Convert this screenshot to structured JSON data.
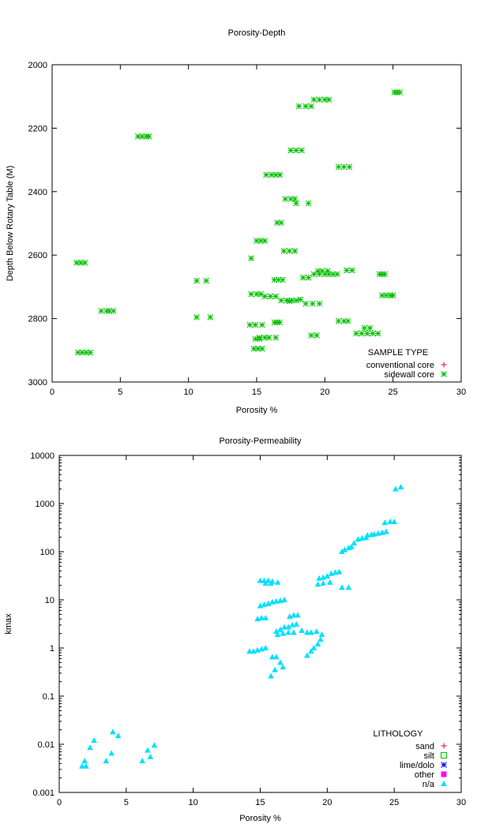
{
  "chart_data": [
    {
      "type": "scatter",
      "title": "Porosity-Depth",
      "xlabel": "Porosity %",
      "ylabel": "Depth Below Rotary Table (M)",
      "xlim": [
        0,
        30
      ],
      "ylim": [
        2000,
        3000
      ],
      "y_inverted": true,
      "grid": false,
      "legend_title": "SAMPLE TYPE",
      "legend_position": "bottom-right",
      "xticks": [
        0,
        5,
        10,
        15,
        20,
        25,
        30
      ],
      "yticks": [
        2000,
        2200,
        2400,
        2600,
        2800,
        3000
      ],
      "series": [
        {
          "name": "conventional core",
          "marker": "plus",
          "color": "#ff0000",
          "points": []
        },
        {
          "name": "sidewall core",
          "marker": "asterisk",
          "color": "#00c000",
          "points": [
            [
              25.1,
              2087
            ],
            [
              25.3,
              2087
            ],
            [
              25.5,
              2087
            ],
            [
              19.2,
              2110
            ],
            [
              19.6,
              2110
            ],
            [
              20.0,
              2110
            ],
            [
              20.3,
              2110
            ],
            [
              18.1,
              2131
            ],
            [
              18.6,
              2131
            ],
            [
              19.0,
              2131
            ],
            [
              6.3,
              2226
            ],
            [
              6.6,
              2226
            ],
            [
              6.9,
              2226
            ],
            [
              7.1,
              2226
            ],
            [
              17.5,
              2270
            ],
            [
              17.9,
              2270
            ],
            [
              18.3,
              2270
            ],
            [
              21.0,
              2322
            ],
            [
              21.4,
              2322
            ],
            [
              21.8,
              2322
            ],
            [
              15.7,
              2347
            ],
            [
              16.1,
              2347
            ],
            [
              16.4,
              2347
            ],
            [
              16.7,
              2347
            ],
            [
              17.1,
              2423
            ],
            [
              17.5,
              2423
            ],
            [
              17.8,
              2423
            ],
            [
              17.9,
              2437
            ],
            [
              18.8,
              2437
            ],
            [
              16.5,
              2498
            ],
            [
              16.8,
              2498
            ],
            [
              15.0,
              2555
            ],
            [
              15.3,
              2555
            ],
            [
              15.6,
              2555
            ],
            [
              17.0,
              2587
            ],
            [
              17.4,
              2587
            ],
            [
              17.8,
              2587
            ],
            [
              14.6,
              2610
            ],
            [
              1.8,
              2624
            ],
            [
              2.1,
              2624
            ],
            [
              2.4,
              2624
            ],
            [
              21.6,
              2648
            ],
            [
              22.0,
              2648
            ],
            [
              19.5,
              2650
            ],
            [
              19.8,
              2650
            ],
            [
              20.2,
              2650
            ],
            [
              19.2,
              2660
            ],
            [
              19.6,
              2660
            ],
            [
              20.0,
              2660
            ],
            [
              20.3,
              2660
            ],
            [
              20.6,
              2660
            ],
            [
              20.9,
              2660
            ],
            [
              24.0,
              2660
            ],
            [
              24.2,
              2660
            ],
            [
              24.4,
              2660
            ],
            [
              18.4,
              2671
            ],
            [
              18.8,
              2671
            ],
            [
              16.3,
              2678
            ],
            [
              16.6,
              2678
            ],
            [
              16.9,
              2678
            ],
            [
              10.6,
              2681
            ],
            [
              11.3,
              2681
            ],
            [
              14.6,
              2723
            ],
            [
              15.0,
              2723
            ],
            [
              15.3,
              2723
            ],
            [
              15.6,
              2730
            ],
            [
              16.0,
              2730
            ],
            [
              16.4,
              2730
            ],
            [
              24.2,
              2727
            ],
            [
              24.5,
              2727
            ],
            [
              24.8,
              2727
            ],
            [
              25.0,
              2727
            ],
            [
              16.8,
              2743
            ],
            [
              17.2,
              2743
            ],
            [
              17.6,
              2743
            ],
            [
              17.9,
              2743
            ],
            [
              18.2,
              2740
            ],
            [
              17.4,
              2745
            ],
            [
              18.6,
              2753
            ],
            [
              19.1,
              2753
            ],
            [
              19.6,
              2753
            ],
            [
              3.6,
              2776
            ],
            [
              4.0,
              2776
            ],
            [
              4.2,
              2776
            ],
            [
              4.5,
              2776
            ],
            [
              10.6,
              2796
            ],
            [
              11.6,
              2796
            ],
            [
              21.0,
              2808
            ],
            [
              21.4,
              2808
            ],
            [
              21.7,
              2808
            ],
            [
              16.3,
              2812
            ],
            [
              16.5,
              2812
            ],
            [
              16.7,
              2812
            ],
            [
              14.5,
              2820
            ],
            [
              14.9,
              2820
            ],
            [
              15.4,
              2820
            ],
            [
              22.9,
              2830
            ],
            [
              23.3,
              2830
            ],
            [
              22.3,
              2847
            ],
            [
              22.7,
              2847
            ],
            [
              23.1,
              2847
            ],
            [
              23.5,
              2847
            ],
            [
              23.9,
              2847
            ],
            [
              19.0,
              2853
            ],
            [
              19.4,
              2853
            ],
            [
              15.2,
              2860
            ],
            [
              15.6,
              2860
            ],
            [
              15.9,
              2860
            ],
            [
              16.4,
              2860
            ],
            [
              15.2,
              2864
            ],
            [
              14.9,
              2864
            ],
            [
              14.8,
              2895
            ],
            [
              15.1,
              2895
            ],
            [
              15.4,
              2895
            ],
            [
              1.9,
              2907
            ],
            [
              2.2,
              2907
            ],
            [
              2.5,
              2907
            ],
            [
              2.8,
              2907
            ]
          ]
        }
      ]
    },
    {
      "type": "scatter",
      "title": "Porosity-Permeability",
      "xlabel": "Porosity %",
      "ylabel": "kmax",
      "xlim": [
        0,
        30
      ],
      "ylim": [
        0.001,
        10000
      ],
      "y_scale": "log",
      "grid": false,
      "legend_title": "LITHOLOGY",
      "legend_position": "bottom-right",
      "xticks": [
        0,
        5,
        10,
        15,
        20,
        25,
        30
      ],
      "yticks": [
        0.001,
        0.01,
        0.1,
        1,
        10,
        100,
        1000,
        10000
      ],
      "ytick_labels": [
        "0.001",
        "0.01",
        "0.1",
        "1",
        "10",
        "100",
        "1000",
        "10000"
      ],
      "series": [
        {
          "name": "sand",
          "marker": "plus",
          "color": "#ff0000",
          "points": []
        },
        {
          "name": "silt",
          "marker": "open-square",
          "color": "#00c000",
          "points": []
        },
        {
          "name": "lime/dolo",
          "marker": "asterisk",
          "color": "#0000ff",
          "points": []
        },
        {
          "name": "other",
          "marker": "filled-square",
          "color": "#ff00ff",
          "points": []
        },
        {
          "name": "n/a",
          "marker": "triangle",
          "color": "#00e0ff",
          "points": [
            [
              25.1,
              2000
            ],
            [
              25.5,
              2200
            ],
            [
              24.3,
              400
            ],
            [
              24.7,
              420
            ],
            [
              25.0,
              420
            ],
            [
              23.5,
              230
            ],
            [
              23.8,
              240
            ],
            [
              24.1,
              250
            ],
            [
              24.4,
              260
            ],
            [
              23.0,
              220
            ],
            [
              23.3,
              225
            ],
            [
              22.3,
              180
            ],
            [
              22.6,
              190
            ],
            [
              22.9,
              195
            ],
            [
              22.0,
              150
            ],
            [
              21.3,
              110
            ],
            [
              21.6,
              120
            ],
            [
              21.8,
              125
            ],
            [
              21.1,
              100
            ],
            [
              20.3,
              35
            ],
            [
              20.6,
              37
            ],
            [
              20.9,
              38
            ],
            [
              19.4,
              28
            ],
            [
              19.7,
              29
            ],
            [
              20.0,
              31
            ],
            [
              19.3,
              21
            ],
            [
              19.7,
              22
            ],
            [
              20.2,
              23
            ],
            [
              21.1,
              18
            ],
            [
              21.6,
              18
            ],
            [
              15.0,
              25
            ],
            [
              15.3,
              25
            ],
            [
              15.6,
              25
            ],
            [
              15.9,
              24
            ],
            [
              16.3,
              23
            ],
            [
              15.4,
              22
            ],
            [
              15.8,
              22
            ],
            [
              15.0,
              7.5
            ],
            [
              15.3,
              8
            ],
            [
              15.6,
              8.3
            ],
            [
              15.9,
              9
            ],
            [
              16.2,
              9.3
            ],
            [
              16.5,
              9.6
            ],
            [
              16.8,
              10
            ],
            [
              14.8,
              4
            ],
            [
              15.1,
              4.2
            ],
            [
              15.4,
              4.2
            ],
            [
              17.2,
              4.5
            ],
            [
              17.5,
              4.8
            ],
            [
              17.8,
              4.8
            ],
            [
              16.2,
              2.2
            ],
            [
              16.5,
              2.4
            ],
            [
              16.8,
              2.7
            ],
            [
              17.1,
              2.7
            ],
            [
              17.4,
              3
            ],
            [
              17.7,
              3.1
            ],
            [
              18.1,
              2.3
            ],
            [
              17.5,
              2.1
            ],
            [
              17.1,
              2.1
            ],
            [
              16.7,
              2.0
            ],
            [
              16.3,
              1.9
            ],
            [
              18.5,
              2.1
            ],
            [
              18.8,
              2.1
            ],
            [
              19.2,
              2.2
            ],
            [
              19.6,
              1.9
            ],
            [
              19.5,
              1.5
            ],
            [
              19.3,
              1.2
            ],
            [
              19.0,
              1.0
            ],
            [
              18.8,
              0.85
            ],
            [
              18.5,
              0.7
            ],
            [
              14.2,
              0.85
            ],
            [
              14.5,
              0.85
            ],
            [
              14.8,
              0.9
            ],
            [
              15.1,
              0.95
            ],
            [
              15.4,
              1.0
            ],
            [
              15.9,
              0.65
            ],
            [
              16.2,
              0.65
            ],
            [
              16.5,
              0.5
            ],
            [
              16.1,
              0.35
            ],
            [
              16.7,
              0.4
            ],
            [
              15.8,
              0.26
            ],
            [
              1.7,
              0.0035
            ],
            [
              2.0,
              0.0035
            ],
            [
              1.9,
              0.0045
            ],
            [
              2.3,
              0.0085
            ],
            [
              2.6,
              0.012
            ],
            [
              3.5,
              0.0045
            ],
            [
              3.9,
              0.0065
            ],
            [
              4.0,
              0.018
            ],
            [
              4.4,
              0.015
            ],
            [
              6.2,
              0.0045
            ],
            [
              6.6,
              0.0075
            ],
            [
              6.8,
              0.0055
            ],
            [
              7.1,
              0.0095
            ]
          ]
        }
      ]
    }
  ]
}
